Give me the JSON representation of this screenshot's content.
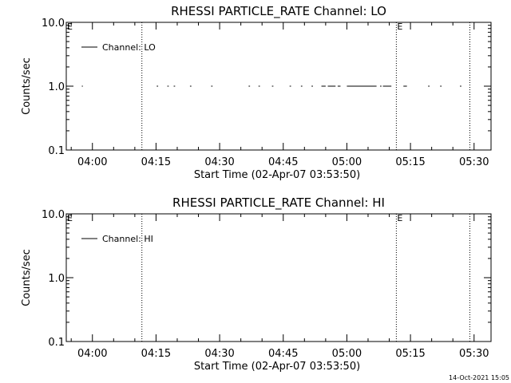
{
  "footer": {
    "timestamp": "14-Oct-2021 15:05"
  },
  "chart_data": [
    {
      "type": "line",
      "title": "RHESSI PARTICLE_RATE Channel: LO",
      "xlabel": "Start Time (02-Apr-07 03:53:50)",
      "ylabel": "Counts/sec",
      "y_scale": "log",
      "ylim": [
        0.1,
        10.0
      ],
      "xlim": [
        "03:53:50",
        "05:34:00"
      ],
      "x_ticks": [
        "04:00",
        "04:15",
        "04:30",
        "04:45",
        "05:00",
        "05:15",
        "05:30"
      ],
      "y_ticks": [
        "0.1",
        "1.0",
        "10.0"
      ],
      "legend": {
        "position": "top-left",
        "entries": [
          "Channel: LO"
        ]
      },
      "series": [
        {
          "name": "Channel: LO",
          "value": 1.0,
          "segments": [
            [
              "03:57:30",
              "03:57:45"
            ],
            [
              "04:15:10",
              "04:15:30"
            ],
            [
              "04:17:40",
              "04:18:00"
            ],
            [
              "04:19:10",
              "04:19:30"
            ],
            [
              "04:23:00",
              "04:23:20"
            ],
            [
              "04:28:00",
              "04:28:20"
            ],
            [
              "04:36:50",
              "04:37:10"
            ],
            [
              "04:39:10",
              "04:39:30"
            ],
            [
              "04:42:20",
              "04:42:40"
            ],
            [
              "04:46:30",
              "04:46:50"
            ],
            [
              "04:49:10",
              "04:49:30"
            ],
            [
              "04:51:40",
              "04:52:00"
            ],
            [
              "04:54:00",
              "04:55:00"
            ],
            [
              "04:55:30",
              "04:57:20"
            ],
            [
              "04:57:50",
              "04:58:30"
            ],
            [
              "05:00:00",
              "05:07:00"
            ],
            [
              "05:07:50",
              "05:08:10"
            ],
            [
              "05:08:30",
              "05:10:30"
            ],
            [
              "05:13:20",
              "05:14:10"
            ],
            [
              "05:19:10",
              "05:19:30"
            ],
            [
              "05:22:00",
              "05:22:20"
            ],
            [
              "05:26:40",
              "05:27:00"
            ]
          ]
        }
      ],
      "annotations": [
        {
          "text": "E",
          "x": "03:53:50"
        },
        {
          "text": "E",
          "x": "05:11:40"
        }
      ],
      "vlines": [
        "04:11:40",
        "05:11:40",
        "05:29:00"
      ]
    },
    {
      "type": "line",
      "title": "RHESSI PARTICLE_RATE Channel: HI",
      "xlabel": "Start Time (02-Apr-07 03:53:50)",
      "ylabel": "Counts/sec",
      "y_scale": "log",
      "ylim": [
        0.1,
        10.0
      ],
      "xlim": [
        "03:53:50",
        "05:34:00"
      ],
      "x_ticks": [
        "04:00",
        "04:15",
        "04:30",
        "04:45",
        "05:00",
        "05:15",
        "05:30"
      ],
      "y_ticks": [
        "0.1",
        "1.0",
        "10.0"
      ],
      "legend": {
        "position": "top-left",
        "entries": [
          "Channel: HI"
        ]
      },
      "series": [
        {
          "name": "Channel: HI",
          "value": null,
          "segments": []
        }
      ],
      "annotations": [
        {
          "text": "E",
          "x": "03:53:50"
        },
        {
          "text": "E",
          "x": "05:11:40"
        }
      ],
      "vlines": [
        "04:11:40",
        "05:11:40",
        "05:29:00"
      ]
    }
  ]
}
